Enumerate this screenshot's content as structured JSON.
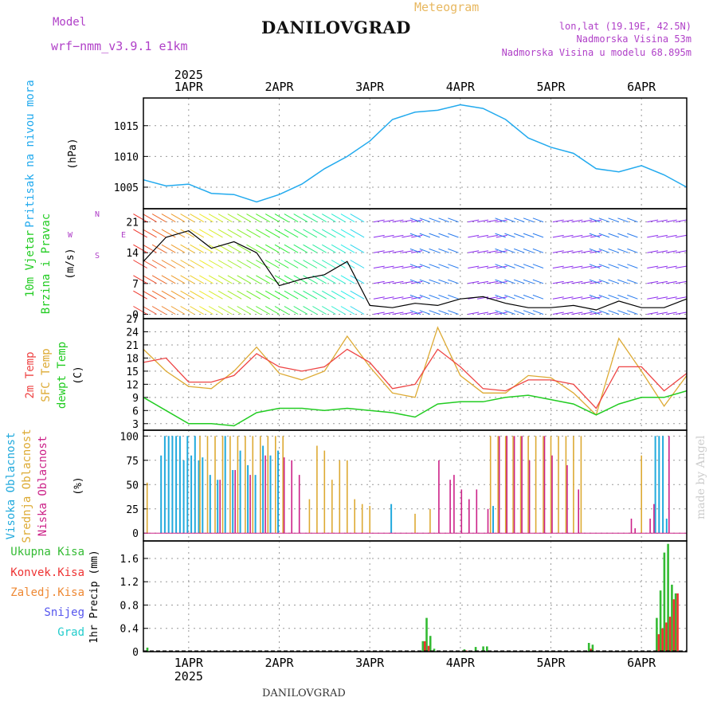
{
  "header": {
    "model_label": "Model",
    "model_name": "wrf−nmm_v3.9.1 e1km",
    "meteogram_label": "Meteogram",
    "location": "DANILOVGRAD",
    "lonlat": "lon,lat (19.19E, 42.5N)",
    "elevation": "Nadmorska Visina 53m",
    "elevation_model": "Nadmorska Visina u modelu 68.895m",
    "footer_location": "DANILOVGRAD",
    "signature": "made by Angel"
  },
  "time_axis": {
    "year": "2025",
    "labels": [
      "1APR",
      "2APR",
      "3APR",
      "4APR",
      "5APR",
      "6APR"
    ],
    "start_hour": -12,
    "end_hour": 132
  },
  "colors": {
    "pressure": "#22aaee",
    "temp_2m": "#ee4444",
    "temp_sfc": "#ddaa33",
    "dewpoint": "#22cc22",
    "cloud_high": "#22aadd",
    "cloud_mid": "#ddaa33",
    "cloud_low": "#cc2288",
    "precip_total": "#33bb33",
    "precip_conv": "#ee3333",
    "precip_ice": "#ee8833",
    "precip_snow": "#5555ee",
    "precip_hail": "#22cccc"
  },
  "chart_data": [
    {
      "type": "line",
      "title": "Pritisak na nivou mora",
      "ylabel": "(hPa)",
      "ylim": [
        1001.5,
        1019.5
      ],
      "yticks": [
        1005,
        1010,
        1015
      ],
      "grid": true,
      "series": [
        {
          "name": "Pritisak na nivou mora",
          "x": [
            -12,
            -6,
            0,
            6,
            12,
            18,
            24,
            30,
            36,
            42,
            48,
            54,
            60,
            66,
            72,
            78,
            84,
            90,
            96,
            102,
            108,
            114,
            120,
            126,
            132
          ],
          "values": [
            1006.2,
            1005.2,
            1005.5,
            1004.0,
            1003.8,
            1002.6,
            1003.8,
            1005.5,
            1008.0,
            1010.0,
            1012.5,
            1016.0,
            1017.2,
            1017.5,
            1018.4,
            1017.8,
            1016.0,
            1013.0,
            1011.5,
            1010.5,
            1008.0,
            1007.5,
            1008.5,
            1007.0,
            1005.0
          ]
        }
      ]
    },
    {
      "type": "line",
      "title": "10m Vjetar Brzina i Pravac",
      "ylabel": "(m/s)",
      "ylim": [
        -1,
        24
      ],
      "yticks": [
        0,
        7,
        14,
        21
      ],
      "grid": true,
      "annotations": [
        "N",
        "E",
        "S",
        "W"
      ],
      "series": [
        {
          "name": "Brzina",
          "x": [
            -12,
            -6,
            0,
            6,
            12,
            18,
            24,
            30,
            36,
            42,
            48,
            54,
            60,
            66,
            72,
            78,
            84,
            90,
            96,
            102,
            108,
            114,
            120,
            126,
            132
          ],
          "values": [
            12.0,
            17.5,
            19.0,
            15.0,
            16.5,
            14.0,
            6.5,
            8.0,
            9.0,
            12.0,
            2.0,
            1.5,
            2.5,
            2.0,
            3.5,
            4.0,
            2.5,
            1.5,
            1.5,
            2.0,
            1.0,
            3.0,
            1.5,
            1.5,
            3.5
          ]
        }
      ]
    },
    {
      "type": "line",
      "title": "2m Temp / SFC Temp / dewpt Temp",
      "ylabel": "(C)",
      "ylim": [
        1.5,
        27
      ],
      "yticks": [
        3,
        6,
        9,
        12,
        15,
        18,
        21,
        24,
        27
      ],
      "grid": true,
      "series": [
        {
          "name": "2m Temp",
          "x": [
            -12,
            -6,
            0,
            6,
            12,
            18,
            24,
            30,
            36,
            42,
            48,
            54,
            60,
            66,
            72,
            78,
            84,
            90,
            96,
            102,
            108,
            114,
            120,
            126,
            132
          ],
          "values": [
            17.0,
            18.0,
            12.5,
            12.5,
            14.0,
            19.0,
            16.0,
            15.0,
            16.0,
            20.0,
            17.0,
            11.0,
            12.0,
            20.0,
            16.0,
            11.0,
            10.5,
            13.0,
            13.0,
            12.0,
            6.5,
            16.0,
            16.0,
            10.5,
            14.5
          ]
        },
        {
          "name": "SFC Temp",
          "x": [
            -12,
            -6,
            0,
            6,
            12,
            18,
            24,
            30,
            36,
            42,
            48,
            54,
            60,
            66,
            72,
            78,
            84,
            90,
            96,
            102,
            108,
            114,
            120,
            126,
            132
          ],
          "values": [
            20.0,
            15.0,
            11.5,
            11.0,
            15.0,
            20.5,
            14.5,
            13.0,
            15.0,
            23.0,
            16.0,
            10.0,
            9.0,
            25.0,
            14.0,
            10.0,
            10.0,
            14.0,
            13.5,
            10.0,
            5.0,
            22.5,
            15.0,
            7.0,
            14.0
          ]
        },
        {
          "name": "dewpt Temp",
          "x": [
            -12,
            -6,
            0,
            6,
            12,
            18,
            24,
            30,
            36,
            42,
            48,
            54,
            60,
            66,
            72,
            78,
            84,
            90,
            96,
            102,
            108,
            114,
            120,
            126,
            132
          ],
          "values": [
            9.0,
            6.0,
            3.0,
            3.0,
            2.5,
            5.5,
            6.5,
            6.5,
            6.0,
            6.5,
            6.0,
            5.5,
            4.5,
            7.5,
            8.0,
            8.0,
            9.0,
            9.5,
            8.5,
            7.5,
            5.0,
            7.5,
            9.0,
            9.0,
            10.5
          ]
        }
      ]
    },
    {
      "type": "bar",
      "title": "Visoka Oblacnost / Srednja Oblacnost / Niska Oblacnost",
      "ylabel": "(%)",
      "ylim": [
        -8,
        106
      ],
      "yticks": [
        0,
        25,
        50,
        75,
        100
      ],
      "grid": true,
      "series": [
        {
          "name": "Visoka Oblacnost",
          "x": [
            -7,
            -6,
            -5,
            -4,
            -3,
            -2,
            -1,
            0,
            1,
            2,
            3,
            4,
            6,
            8,
            10,
            12,
            14,
            16,
            18,
            20,
            22,
            24,
            54,
            81,
            124,
            125,
            126,
            127
          ],
          "values": [
            80,
            100,
            100,
            100,
            100,
            100,
            75,
            100,
            80,
            100,
            75,
            78,
            60,
            55,
            100,
            65,
            85,
            70,
            60,
            90,
            80,
            85,
            30,
            28,
            100,
            100,
            100,
            15
          ]
        },
        {
          "name": "Srednja Oblacnost",
          "x": [
            -11,
            3,
            5,
            7,
            9,
            11,
            13,
            15,
            17,
            19,
            21,
            23,
            25,
            32,
            34,
            36,
            38,
            40,
            42,
            44,
            46,
            48,
            60,
            64,
            80,
            82,
            84,
            86,
            88,
            90,
            92,
            94,
            96,
            98,
            100,
            102,
            104,
            120
          ],
          "values": [
            52,
            100,
            100,
            100,
            100,
            100,
            100,
            100,
            100,
            100,
            100,
            100,
            100,
            35,
            90,
            85,
            55,
            75,
            75,
            35,
            30,
            28,
            20,
            25,
            100,
            100,
            100,
            100,
            100,
            100,
            100,
            100,
            100,
            100,
            100,
            100,
            100,
            80
          ]
        },
        {
          "name": "Niska Oblacnost",
          "x": [
            8,
            12,
            16,
            20,
            25,
            27,
            29,
            66,
            69,
            70,
            72,
            74,
            76,
            79,
            82,
            84,
            86,
            88,
            90,
            94,
            96,
            100,
            103,
            117,
            118,
            122,
            123,
            127
          ],
          "values": [
            55,
            65,
            60,
            80,
            78,
            75,
            60,
            75,
            55,
            60,
            45,
            35,
            45,
            25,
            100,
            100,
            100,
            100,
            75,
            100,
            80,
            70,
            45,
            15,
            5,
            15,
            30,
            100
          ]
        }
      ]
    },
    {
      "type": "bar",
      "title": "1hr Precip",
      "ylabel": "1hr Precip (mm)",
      "ylim": [
        0,
        1.9
      ],
      "yticks": [
        0,
        0.4,
        0.8,
        1.2,
        1.6
      ],
      "grid": true,
      "legend": [
        "Ukupna Kisa",
        "Konvek.Kisa",
        "Zaledj.Kisa",
        "Snijeg",
        "Grad"
      ],
      "series": [
        {
          "name": "Ukupna Kisa",
          "x": [
            -11,
            62,
            63,
            64,
            65,
            73,
            76,
            78,
            79,
            106,
            107,
            124,
            125,
            126,
            127,
            128,
            129
          ],
          "values": [
            0.07,
            0.18,
            0.58,
            0.27,
            0.05,
            0.04,
            0.08,
            0.09,
            0.09,
            0.15,
            0.12,
            0.58,
            1.05,
            1.7,
            1.85,
            1.15,
            1.0
          ]
        },
        {
          "name": "Konvek.Kisa",
          "x": [
            62,
            63,
            73,
            106,
            124,
            125,
            126,
            127,
            128,
            129
          ],
          "values": [
            0.18,
            0.1,
            0.02,
            0.05,
            0.3,
            0.4,
            0.5,
            0.6,
            0.9,
            1.0
          ]
        }
      ]
    }
  ]
}
